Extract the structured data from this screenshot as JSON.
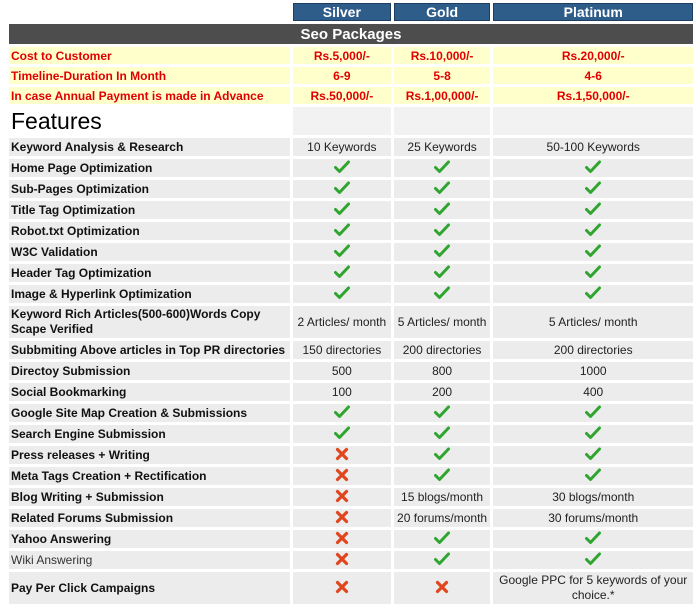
{
  "packages": [
    "Silver",
    "Gold",
    "Platinum"
  ],
  "banner": "Seo Packages",
  "pricing": [
    {
      "label": "Cost to Customer",
      "values": [
        "Rs.5,000/-",
        "Rs.10,000/-",
        "Rs.20,000/-"
      ]
    },
    {
      "label": "Timeline-Duration In Month",
      "values": [
        "6-9",
        "5-8",
        "4-6"
      ]
    },
    {
      "label": "In case Annual Payment is made in Advance",
      "values": [
        "Rs.50,000/-",
        "Rs.1,00,000/-",
        "Rs.1,50,000/-"
      ]
    }
  ],
  "features_heading": "Features",
  "features": [
    {
      "label": "Keyword Analysis & Research",
      "values": [
        "10 Keywords",
        "25 Keywords",
        "50-100 Keywords"
      ]
    },
    {
      "label": "Home Page Optimization",
      "values": [
        "check",
        "check",
        "check"
      ]
    },
    {
      "label": "Sub-Pages Optimization",
      "values": [
        "check",
        "check",
        "check"
      ]
    },
    {
      "label": "Title Tag Optimization",
      "values": [
        "check",
        "check",
        "check"
      ]
    },
    {
      "label": "Robot.txt Optimization",
      "values": [
        "check",
        "check",
        "check"
      ]
    },
    {
      "label": "W3C Validation",
      "values": [
        "check",
        "check",
        "check"
      ]
    },
    {
      "label": "Header Tag Optimization",
      "values": [
        "check",
        "check",
        "check"
      ]
    },
    {
      "label": "Image & Hyperlink Optimization",
      "values": [
        "check",
        "check",
        "check"
      ]
    },
    {
      "label": "Keyword Rich Articles(500-600)Words Copy Scape Verified",
      "values": [
        "2 Articles/ month",
        "5 Articles/ month",
        "5 Articles/ month"
      ]
    },
    {
      "label": "Subbmiting Above articles in Top PR directories",
      "values": [
        "150 directories",
        "200 directories",
        "200 directories"
      ]
    },
    {
      "label": "Directoy Submission",
      "values": [
        "500",
        "800",
        "1000"
      ]
    },
    {
      "label": "Social Bookmarking",
      "values": [
        "100",
        "200",
        "400"
      ]
    },
    {
      "label": "Google Site Map Creation & Submissions",
      "values": [
        "check",
        "check",
        "check"
      ]
    },
    {
      "label": "Search Engine Submission",
      "values": [
        "check",
        "check",
        "check"
      ]
    },
    {
      "label": "Press releases + Writing",
      "values": [
        "cross",
        "check",
        "check"
      ]
    },
    {
      "label": "Meta Tags Creation + Rectification",
      "values": [
        "cross",
        "check",
        "check"
      ]
    },
    {
      "label": "Blog Writing + Submission",
      "values": [
        "cross",
        "15 blogs/month",
        "30 blogs/month"
      ]
    },
    {
      "label": "Related Forums Submission",
      "values": [
        "cross",
        "20 forums/month",
        "30 forums/month"
      ]
    },
    {
      "label": "Yahoo Answering",
      "values": [
        "cross",
        "check",
        "check"
      ]
    },
    {
      "label": "Wiki Answering",
      "values": [
        "cross",
        "check",
        "check"
      ]
    },
    {
      "label": "Pay Per Click Campaigns",
      "values": [
        "cross",
        "cross",
        "Google PPC for 5 keywords of your choice.*"
      ]
    }
  ],
  "colors": {
    "header_blue": "#2f5d8a",
    "banner_gray": "#4d4d4d",
    "price_red": "#e00000",
    "price_bg": "#ffffcc",
    "row_bg": "#ececec",
    "tick_green": "#2fa52f",
    "cross_red": "#e0451e"
  },
  "icons": {
    "check": "check-icon",
    "cross": "cross-icon"
  }
}
